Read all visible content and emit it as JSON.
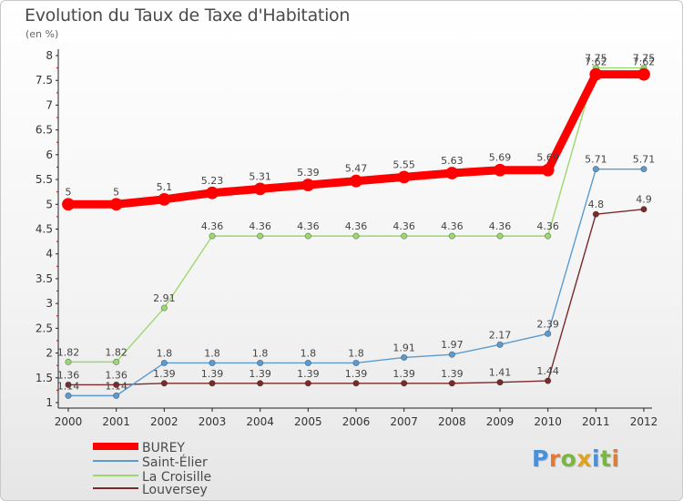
{
  "chart_data": {
    "type": "line",
    "title": "Evolution du Taux de Taxe d'Habitation",
    "subtitle": "(en %)",
    "categories": [
      "2000",
      "2001",
      "2002",
      "2003",
      "2004",
      "2005",
      "2006",
      "2007",
      "2008",
      "2009",
      "2010",
      "2011",
      "2012"
    ],
    "ylim": [
      1,
      8
    ],
    "yticks": [
      "1",
      "1.5",
      "2",
      "2.5",
      "3",
      "3.5",
      "4",
      "4.5",
      "5",
      "5.5",
      "6",
      "6.5",
      "7",
      "7.5",
      "8"
    ],
    "series": [
      {
        "name": "BUREY",
        "color": "#ff0000",
        "values": [
          5,
          5,
          5.1,
          5.23,
          5.31,
          5.39,
          5.47,
          5.55,
          5.63,
          5.69,
          5.69,
          7.62,
          7.62
        ],
        "labels": [
          "5",
          "5",
          "5.1",
          "5.23",
          "5.31",
          "5.39",
          "5.47",
          "5.55",
          "5.63",
          "5.69",
          "5.69",
          "7.62",
          "7.62"
        ]
      },
      {
        "name": "Saint-Élier",
        "color": "#5b9bd0",
        "values": [
          1.14,
          1.14,
          1.8,
          1.8,
          1.8,
          1.8,
          1.8,
          1.91,
          1.97,
          2.17,
          2.39,
          5.71,
          5.71
        ],
        "labels": [
          "1.14",
          "1.14",
          "1.8",
          "1.8",
          "1.8",
          "1.8",
          "1.8",
          "1.91",
          "1.97",
          "2.17",
          "2.39",
          "5.71",
          "5.71"
        ]
      },
      {
        "name": "La Croisille",
        "color": "#9bd86e",
        "values": [
          1.82,
          1.82,
          2.91,
          4.36,
          4.36,
          4.36,
          4.36,
          4.36,
          4.36,
          4.36,
          4.36,
          7.75,
          7.75
        ],
        "labels": [
          "1.82",
          "1.82",
          "2.91",
          "4.36",
          "4.36",
          "4.36",
          "4.36",
          "4.36",
          "4.36",
          "4.36",
          "4.36",
          "7.75",
          "7.75"
        ]
      },
      {
        "name": "Louversey",
        "color": "#7a2a2a",
        "values": [
          1.36,
          1.36,
          1.39,
          1.39,
          1.39,
          1.39,
          1.39,
          1.39,
          1.39,
          1.41,
          1.44,
          4.8,
          4.9
        ],
        "labels": [
          "1.36",
          "1.36",
          "1.39",
          "1.39",
          "1.39",
          "1.39",
          "1.39",
          "1.39",
          "1.39",
          "1.41",
          "1.44",
          "4.8",
          "4.9"
        ]
      }
    ],
    "legend": "bottom-left",
    "grid": false
  },
  "logo": {
    "letters": [
      "P",
      "r",
      "o",
      "x",
      "i",
      "t",
      "i"
    ],
    "colors": [
      "#4a90d9",
      "#e07b39",
      "#78b83e",
      "#e0a020",
      "#4a90d9",
      "#78b83e",
      "#e07b39"
    ]
  }
}
